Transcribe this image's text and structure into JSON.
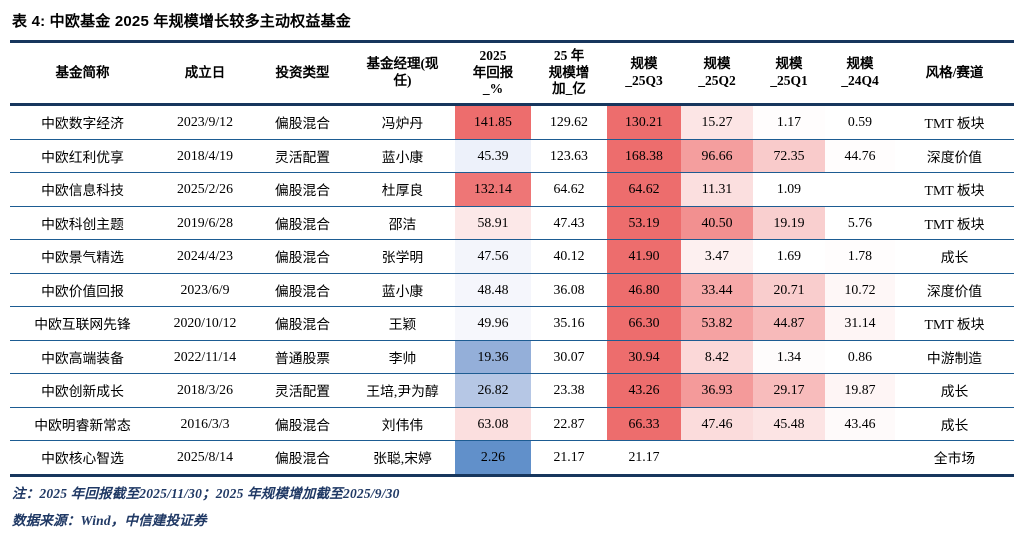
{
  "title": "表 4: 中欧基金 2025 年规模增长较多主动权益基金",
  "colors": {
    "heat_red_max": "#ed6d6d",
    "heat_blue_max": "#6190ca",
    "border_thick": "#17365d",
    "border_row": "#1d5c92",
    "note_text": "#1f3864"
  },
  "table": {
    "headers": [
      "基金简称",
      "成立日",
      "投资类型",
      "基金经理(现\n任)",
      "2025\n年回报\n_%",
      "25 年\n规模增\n加_亿",
      "规模\n_25Q3",
      "规模\n_25Q2",
      "规模\n_25Q1",
      "规模\n_24Q4",
      "风格/赛道"
    ],
    "rows": [
      [
        {
          "v": "中欧数字经济"
        },
        {
          "v": "2023/9/12"
        },
        {
          "v": "偏股混合"
        },
        {
          "v": "冯炉丹"
        },
        {
          "v": "141.85",
          "bg": "#ed6d6d"
        },
        {
          "v": "129.62"
        },
        {
          "v": "130.21",
          "bg": "#ed6d6d"
        },
        {
          "v": "15.27",
          "bg": "#fce5e5"
        },
        {
          "v": "1.17",
          "bg": "#fffdfd"
        },
        {
          "v": "0.59"
        },
        {
          "v": "TMT 板块"
        }
      ],
      [
        {
          "v": "中欧红利优享"
        },
        {
          "v": "2018/4/19"
        },
        {
          "v": "灵活配置"
        },
        {
          "v": "蓝小康"
        },
        {
          "v": "45.39",
          "bg": "#edf1fa"
        },
        {
          "v": "123.63"
        },
        {
          "v": "168.38",
          "bg": "#ed6d6d"
        },
        {
          "v": "96.66",
          "bg": "#f49e9e"
        },
        {
          "v": "72.35",
          "bg": "#f9cbcb"
        },
        {
          "v": "44.76",
          "bg": "#fffdfd"
        },
        {
          "v": "深度价值"
        }
      ],
      [
        {
          "v": "中欧信息科技"
        },
        {
          "v": "2025/2/26"
        },
        {
          "v": "偏股混合"
        },
        {
          "v": "杜厚良"
        },
        {
          "v": "132.14",
          "bg": "#ee7676"
        },
        {
          "v": "64.62"
        },
        {
          "v": "64.62",
          "bg": "#ed6d6d"
        },
        {
          "v": "11.31",
          "bg": "#fbdfdf"
        },
        {
          "v": "1.09"
        },
        {
          "v": ""
        },
        {
          "v": "TMT 板块"
        }
      ],
      [
        {
          "v": "中欧科创主题"
        },
        {
          "v": "2019/6/28"
        },
        {
          "v": "偏股混合"
        },
        {
          "v": "邵洁"
        },
        {
          "v": "58.91",
          "bg": "#fce8e8"
        },
        {
          "v": "47.43"
        },
        {
          "v": "53.19",
          "bg": "#ed6d6d"
        },
        {
          "v": "40.50",
          "bg": "#f29090"
        },
        {
          "v": "19.19",
          "bg": "#f9cfcf"
        },
        {
          "v": "5.76"
        },
        {
          "v": "TMT 板块"
        }
      ],
      [
        {
          "v": "中欧景气精选"
        },
        {
          "v": "2024/4/23"
        },
        {
          "v": "偏股混合"
        },
        {
          "v": "张学明"
        },
        {
          "v": "47.56",
          "bg": "#f3f5fb"
        },
        {
          "v": "40.12"
        },
        {
          "v": "41.90",
          "bg": "#ed6d6d"
        },
        {
          "v": "3.47",
          "bg": "#fdf0f0"
        },
        {
          "v": "1.69"
        },
        {
          "v": "1.78",
          "bg": "#fffdfd"
        },
        {
          "v": "成长"
        }
      ],
      [
        {
          "v": "中欧价值回报"
        },
        {
          "v": "2023/6/9"
        },
        {
          "v": "偏股混合"
        },
        {
          "v": "蓝小康"
        },
        {
          "v": "48.48",
          "bg": "#f5f6fc"
        },
        {
          "v": "36.08"
        },
        {
          "v": "46.80",
          "bg": "#ed6d6d"
        },
        {
          "v": "33.44",
          "bg": "#f6a8a8"
        },
        {
          "v": "20.71",
          "bg": "#f9cdcd"
        },
        {
          "v": "10.72",
          "bg": "#fef7f7"
        },
        {
          "v": "深度价值"
        }
      ],
      [
        {
          "v": "中欧互联网先锋"
        },
        {
          "v": "2020/10/12"
        },
        {
          "v": "偏股混合"
        },
        {
          "v": "王颖"
        },
        {
          "v": "49.96",
          "bg": "#f6f7fc"
        },
        {
          "v": "35.16"
        },
        {
          "v": "66.30",
          "bg": "#ed6d6d"
        },
        {
          "v": "53.82",
          "bg": "#f5a2a2"
        },
        {
          "v": "44.87",
          "bg": "#f7baba"
        },
        {
          "v": "31.14",
          "bg": "#fef5f5"
        },
        {
          "v": "TMT 板块"
        }
      ],
      [
        {
          "v": "中欧高端装备"
        },
        {
          "v": "2022/11/14"
        },
        {
          "v": "普通股票"
        },
        {
          "v": "李帅"
        },
        {
          "v": "19.36",
          "bg": "#94afd9"
        },
        {
          "v": "30.07"
        },
        {
          "v": "30.94",
          "bg": "#ed6d6d"
        },
        {
          "v": "8.42",
          "bg": "#fbd8d8"
        },
        {
          "v": "1.34",
          "bg": "#fefcfc"
        },
        {
          "v": "0.86"
        },
        {
          "v": "中游制造"
        }
      ],
      [
        {
          "v": "中欧创新成长"
        },
        {
          "v": "2018/3/26"
        },
        {
          "v": "灵活配置"
        },
        {
          "v": "王培,尹为醇"
        },
        {
          "v": "26.82",
          "bg": "#b6c7e5"
        },
        {
          "v": "23.38"
        },
        {
          "v": "43.26",
          "bg": "#ed6d6d"
        },
        {
          "v": "36.93",
          "bg": "#f49a9a"
        },
        {
          "v": "29.17",
          "bg": "#f8bcbc"
        },
        {
          "v": "19.87",
          "bg": "#fef5f5"
        },
        {
          "v": "成长"
        }
      ],
      [
        {
          "v": "中欧明睿新常态"
        },
        {
          "v": "2016/3/3"
        },
        {
          "v": "偏股混合"
        },
        {
          "v": "刘伟伟"
        },
        {
          "v": "63.08",
          "bg": "#fbdfdf"
        },
        {
          "v": "22.87"
        },
        {
          "v": "66.33",
          "bg": "#ed6d6d"
        },
        {
          "v": "47.46",
          "bg": "#fbdcdc"
        },
        {
          "v": "45.48",
          "bg": "#fce4e4"
        },
        {
          "v": "43.46",
          "bg": "#fefafa"
        },
        {
          "v": "成长"
        }
      ],
      [
        {
          "v": "中欧核心智选"
        },
        {
          "v": "2025/8/14"
        },
        {
          "v": "偏股混合"
        },
        {
          "v": "张聪,宋婷"
        },
        {
          "v": "2.26",
          "bg": "#6190ca"
        },
        {
          "v": "21.17"
        },
        {
          "v": "21.17"
        },
        {
          "v": ""
        },
        {
          "v": ""
        },
        {
          "v": ""
        },
        {
          "v": "全市场"
        }
      ]
    ]
  },
  "notes": {
    "note1": "注：2025 年回报截至2025/11/30；2025 年规模增加截至2025/9/30",
    "note2": "数据来源：Wind，中信建投证券"
  }
}
